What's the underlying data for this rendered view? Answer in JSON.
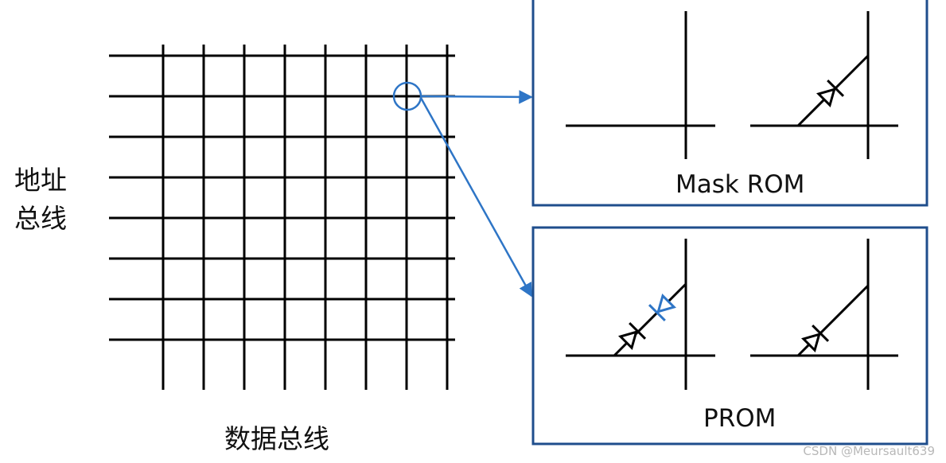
{
  "labels": {
    "address_bus_line1": "地址",
    "address_bus_line2": "总线",
    "data_bus": "数据总线",
    "mask_rom": "Mask ROM",
    "prom": "PROM",
    "watermark": "CSDN @Meursault639"
  },
  "grid": {
    "rows": 8,
    "columns": 8
  },
  "colors": {
    "line": "#000000",
    "highlight": "#2e75c6",
    "panel_border": "#1f4e8c",
    "text": "#111111"
  }
}
